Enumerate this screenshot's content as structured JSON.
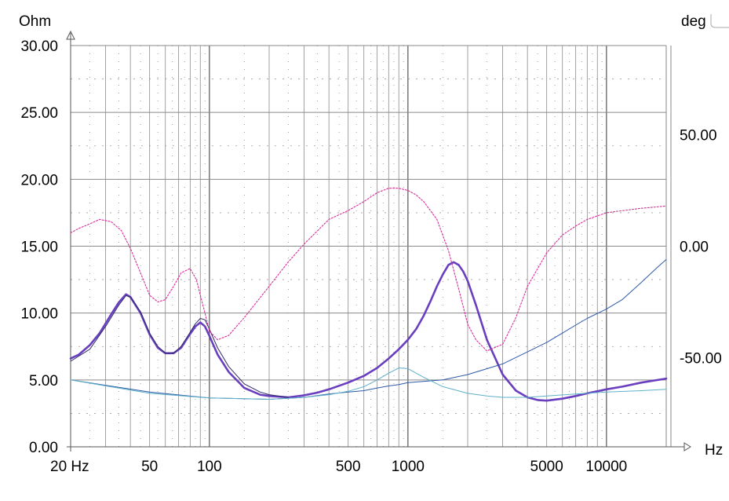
{
  "chart_data": {
    "type": "line",
    "xscale": "log",
    "xlim": [
      20,
      20000
    ],
    "ylim_left": [
      0,
      30
    ],
    "ylim_right": [
      -90,
      90
    ],
    "yunit_left": "Ohm",
    "yunit_right": "deg",
    "xunit": "Hz",
    "grid": true,
    "x_ticks": [
      {
        "value": 20,
        "label": "20 Hz"
      },
      {
        "value": 50,
        "label": "50"
      },
      {
        "value": 100,
        "label": "100"
      },
      {
        "value": 500,
        "label": "500"
      },
      {
        "value": 1000,
        "label": "1000"
      },
      {
        "value": 5000,
        "label": "5000"
      },
      {
        "value": 10000,
        "label": "10000"
      }
    ],
    "y_ticks_left": [
      {
        "value": 0,
        "label": "0.00"
      },
      {
        "value": 5,
        "label": "5.00"
      },
      {
        "value": 10,
        "label": "10.00"
      },
      {
        "value": 15,
        "label": "15.00"
      },
      {
        "value": 20,
        "label": "20.00"
      },
      {
        "value": 25,
        "label": "25.00"
      },
      {
        "value": 30,
        "label": "30.00"
      }
    ],
    "y_ticks_right": [
      {
        "value": -50,
        "label": "-50.00"
      },
      {
        "value": 0,
        "label": "0.00"
      },
      {
        "value": 50,
        "label": "50.00"
      }
    ],
    "series": [
      {
        "axis": "left",
        "color": "#6a3fbf",
        "style": "thick",
        "x": [
          20,
          22,
          25,
          28,
          32,
          35,
          38,
          40,
          45,
          50,
          55,
          60,
          66,
          72,
          78,
          85,
          90,
          95,
          100,
          110,
          125,
          150,
          180,
          200,
          250,
          300,
          350,
          400,
          500,
          600,
          700,
          800,
          900,
          1000,
          1100,
          1200,
          1300,
          1400,
          1500,
          1600,
          1700,
          1800,
          1900,
          2000,
          2200,
          2500,
          3000,
          3500,
          4000,
          4500,
          5000,
          6000,
          7000,
          8000,
          10000,
          12000,
          15000,
          20000
        ],
        "y": [
          6.6,
          6.9,
          7.6,
          8.5,
          9.9,
          10.8,
          11.4,
          11.2,
          10,
          8.4,
          7.4,
          7,
          7,
          7.4,
          8.2,
          9,
          9.3,
          9,
          8.3,
          6.9,
          5.6,
          4.4,
          3.9,
          3.8,
          3.7,
          3.85,
          4.05,
          4.3,
          4.8,
          5.3,
          5.9,
          6.6,
          7.3,
          8,
          8.8,
          9.8,
          10.9,
          12,
          12.9,
          13.6,
          13.8,
          13.6,
          13.1,
          12.4,
          10.6,
          8,
          5.4,
          4.2,
          3.7,
          3.5,
          3.45,
          3.6,
          3.8,
          4,
          4.3,
          4.5,
          4.8,
          5.1
        ]
      },
      {
        "axis": "left",
        "color": "#2a2a66",
        "style": "thin",
        "x": [
          20,
          25,
          30,
          35,
          38,
          40,
          45,
          50,
          55,
          60,
          66,
          72,
          78,
          85,
          90,
          95,
          100,
          110,
          125,
          150,
          180,
          200,
          250
        ],
        "y": [
          6.4,
          7.3,
          9,
          10.6,
          11.3,
          11.2,
          10.1,
          8.5,
          7.5,
          7,
          7,
          7.5,
          8.3,
          9.2,
          9.6,
          9.5,
          8.8,
          7.4,
          6,
          4.7,
          4.1,
          3.9,
          3.7
        ]
      },
      {
        "axis": "left",
        "color": "#2d5aa8",
        "style": "thin",
        "x": [
          20,
          50,
          100,
          200,
          300,
          400,
          500,
          600,
          700,
          800,
          900,
          1000,
          1500,
          2000,
          3000,
          4000,
          5000,
          6000,
          7000,
          8000,
          10000,
          12000,
          15000,
          18000,
          20000
        ],
        "y": [
          5,
          4.1,
          3.65,
          3.55,
          3.7,
          3.95,
          4.1,
          4.2,
          4.4,
          4.55,
          4.65,
          4.8,
          5,
          5.4,
          6.2,
          7.1,
          7.8,
          8.5,
          9.1,
          9.6,
          10.3,
          11,
          12.3,
          13.4,
          14
        ]
      },
      {
        "axis": "left",
        "color": "#5fb0c8",
        "style": "thin",
        "x": [
          20,
          50,
          100,
          200,
          300,
          400,
          500,
          600,
          700,
          800,
          900,
          1000,
          1200,
          1500,
          2000,
          2500,
          3000,
          4000,
          5000,
          7000,
          10000,
          15000,
          20000
        ],
        "y": [
          5,
          4,
          3.65,
          3.55,
          3.7,
          3.9,
          4.15,
          4.5,
          5,
          5.5,
          5.9,
          5.85,
          5.2,
          4.5,
          4,
          3.8,
          3.7,
          3.7,
          3.8,
          3.95,
          4.1,
          4.2,
          4.3
        ]
      },
      {
        "axis": "right",
        "color": "#d8309a",
        "style": "dotted",
        "x": [
          20,
          22,
          25,
          28,
          32,
          36,
          40,
          45,
          50,
          55,
          60,
          66,
          72,
          80,
          86,
          90,
          95,
          100,
          110,
          125,
          150,
          200,
          250,
          300,
          400,
          500,
          600,
          700,
          800,
          900,
          1000,
          1100,
          1200,
          1400,
          1600,
          1800,
          2000,
          2200,
          2500,
          3000,
          3500,
          4000,
          5000,
          6000,
          7000,
          8000,
          10000,
          15000,
          20000
        ],
        "y": [
          6,
          8,
          10,
          12,
          11,
          7,
          -1,
          -12,
          -22,
          -25,
          -24,
          -18,
          -12,
          -10,
          -15,
          -22,
          -30,
          -38,
          -42,
          -40,
          -32,
          -18,
          -7,
          1,
          12,
          16,
          20,
          24,
          26,
          26,
          25,
          23,
          20,
          12,
          -2,
          -19,
          -35,
          -42,
          -47,
          -44,
          -32,
          -18,
          -3,
          5,
          9,
          12,
          15,
          17,
          18
        ]
      }
    ]
  }
}
